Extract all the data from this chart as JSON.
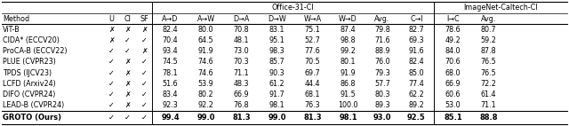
{
  "headers_sub": [
    "Method",
    "U",
    "CI",
    "SF",
    "A→D",
    "A→W",
    "D→A",
    "D→W",
    "W→A",
    "W→D",
    "Avg.",
    "C→I",
    "I→C",
    "Avg."
  ],
  "rows": [
    [
      "ViT-B",
      "✗",
      "✗",
      "✗",
      "82.4",
      "80.0",
      "70.8",
      "83.1",
      "75.1",
      "87.4",
      "79.8",
      "82.7",
      "78.6",
      "80.7"
    ],
    [
      "CIDA* (ECCV20)",
      "✗",
      "✓",
      "✓",
      "70.4",
      "64.5",
      "48.1",
      "95.1",
      "52.7",
      "98.8",
      "71.6",
      "69.3",
      "49.2",
      "59.2"
    ],
    [
      "ProCA-B (ECCV22)",
      "✓",
      "✓",
      "✗",
      "93.4",
      "91.9",
      "73.0",
      "98.3",
      "77.6",
      "99.2",
      "88.9",
      "91.6",
      "84.0",
      "87.8"
    ],
    [
      "PLUE (CVPR23)",
      "✓",
      "✗",
      "✓",
      "74.5",
      "74.6",
      "70.3",
      "85.7",
      "70.5",
      "80.1",
      "76.0",
      "82.4",
      "70.6",
      "76.5"
    ],
    [
      "TPDS (IJCV23)",
      "✓",
      "✗",
      "✓",
      "78.1",
      "74.6",
      "71.1",
      "90.3",
      "69.7",
      "91.9",
      "79.3",
      "85.0",
      "68.0",
      "76.5"
    ],
    [
      "LCFD (Arxiv24)",
      "✓",
      "✗",
      "✓",
      "51.6",
      "53.9",
      "48.3",
      "61.2",
      "44.4",
      "86.8",
      "57.7",
      "77.4",
      "66.9",
      "72.2"
    ],
    [
      "DIFO (CVPR24)",
      "✓",
      "✗",
      "✓",
      "83.4",
      "80.2",
      "66.9",
      "91.7",
      "68.1",
      "91.5",
      "80.3",
      "62.2",
      "60.6",
      "61.4"
    ],
    [
      "LEAD-B (CVPR24)",
      "✓",
      "✗",
      "✓",
      "92.3",
      "92.2",
      "76.8",
      "98.1",
      "76.3",
      "100.0",
      "89.3",
      "89.2",
      "53.0",
      "71.1"
    ],
    [
      "GROTO (Ours)",
      "✓",
      "✓",
      "✓",
      "99.4",
      "99.0",
      "81.3",
      "99.0",
      "81.3",
      "98.1",
      "93.0",
      "92.5",
      "85.1",
      "88.8"
    ]
  ],
  "bold_row": 8,
  "fig_bg": "#ffffff",
  "font_size": 5.8,
  "header_font_size": 5.8
}
